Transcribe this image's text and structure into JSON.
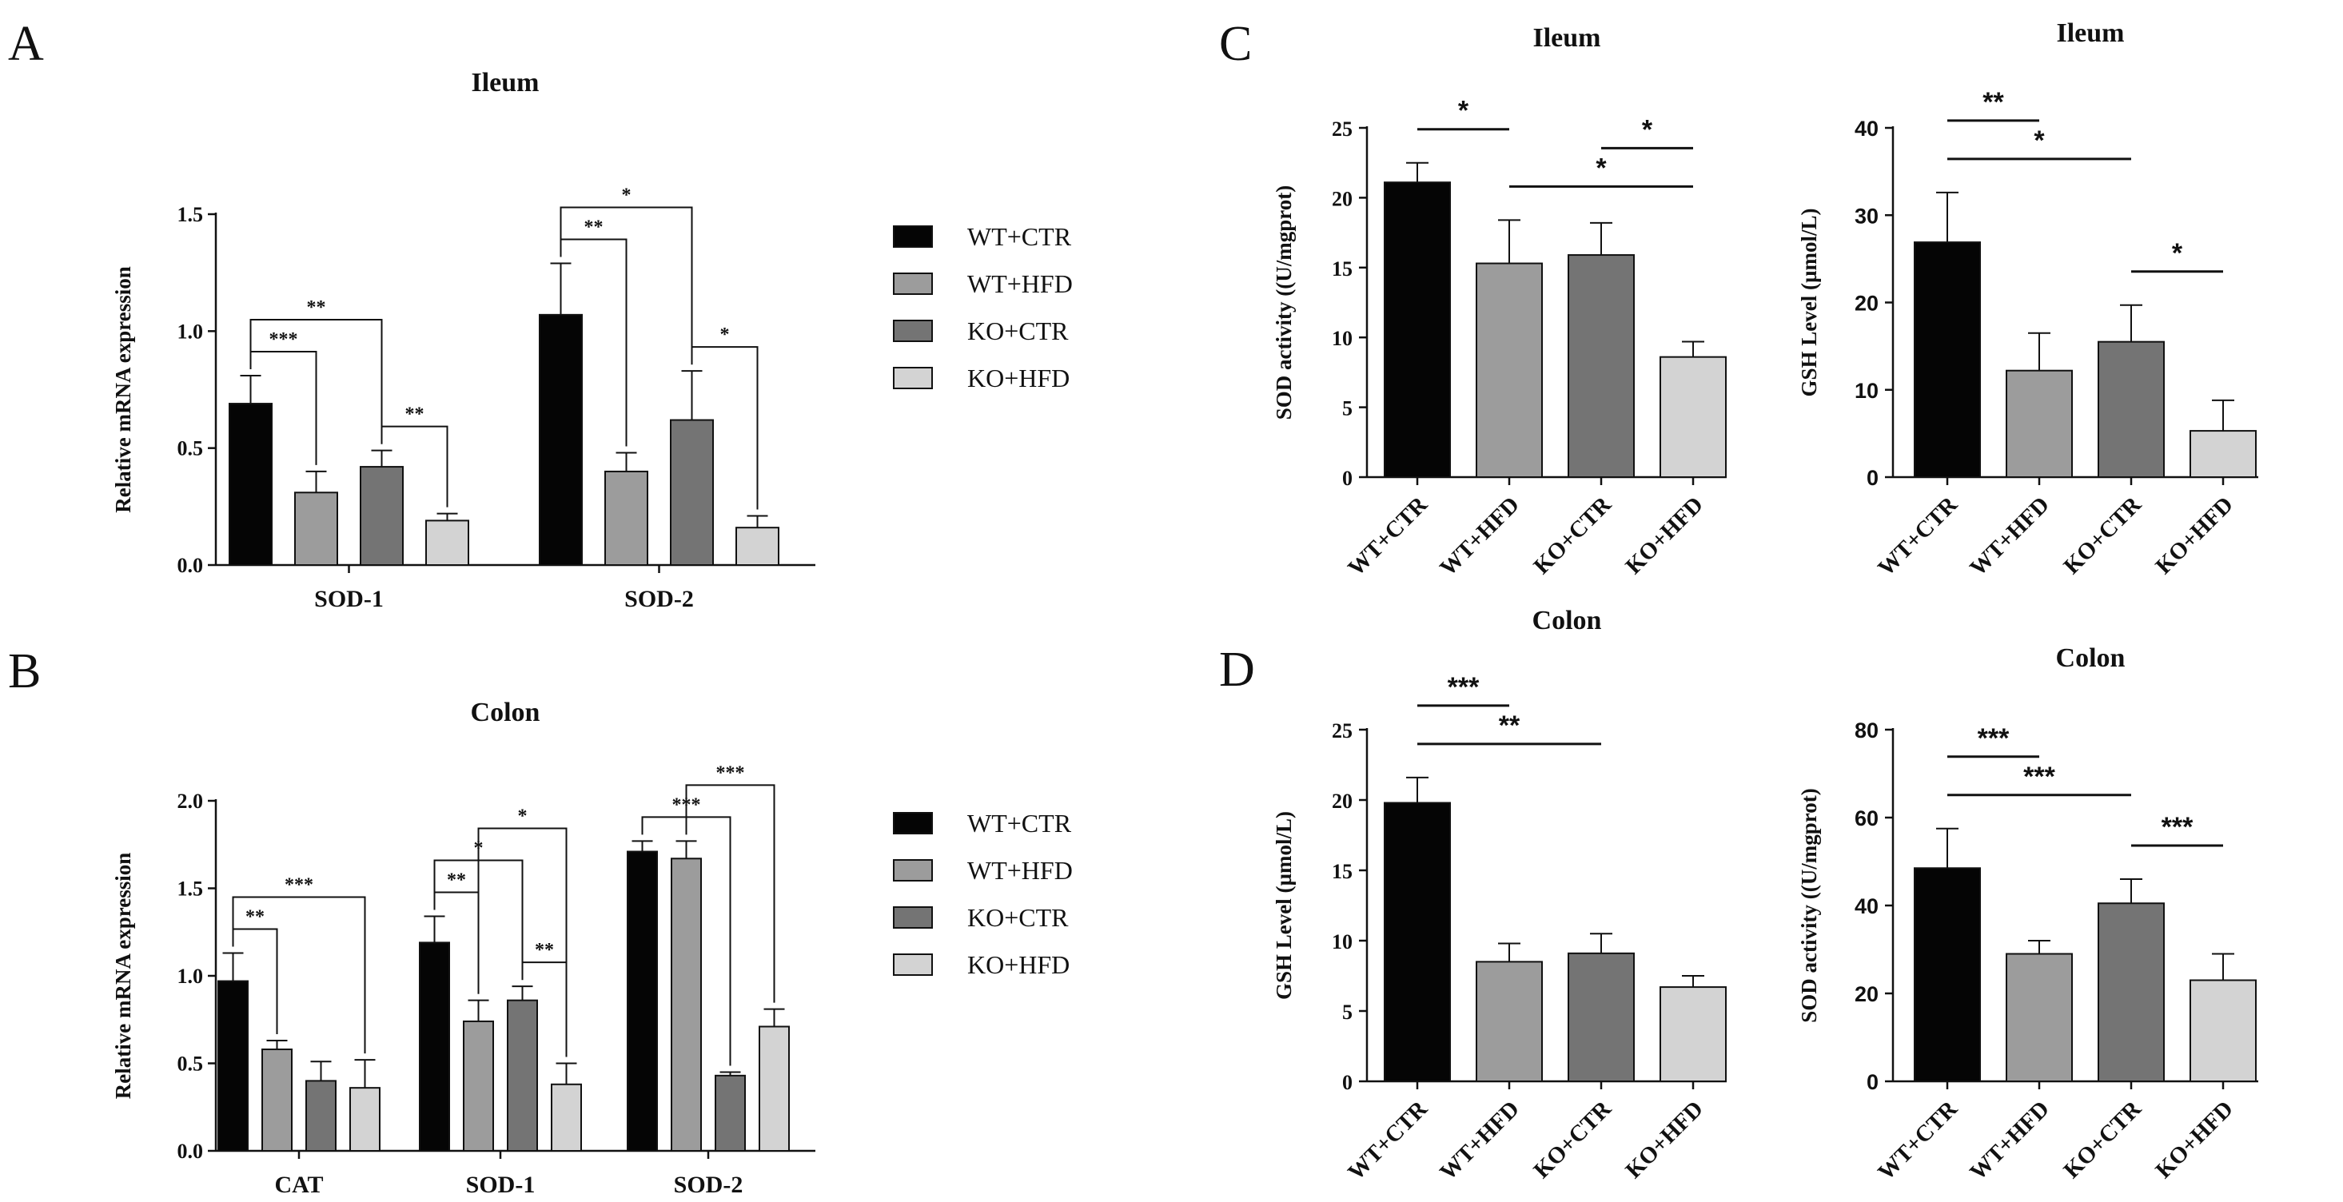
{
  "figure": {
    "panel_letters": [
      "A",
      "B",
      "C",
      "D"
    ],
    "colors": {
      "WT+CTR": "#050505",
      "WT+HFD": "#9c9c9c",
      "KO+CTR": "#747474",
      "KO+HFD": "#d3d3d3",
      "axis": "#111111"
    }
  },
  "chart_data": [
    {
      "id": "A",
      "type": "bar",
      "title": "Ileum",
      "ylabel": "Relative mRNA expression",
      "xlabel": "",
      "ylim": [
        0,
        1.5
      ],
      "yticks": [
        "0.0",
        "0.5",
        "1.0",
        "1.5"
      ],
      "categories": [
        "SOD-1",
        "SOD-2"
      ],
      "series": [
        {
          "name": "WT+CTR",
          "values": [
            0.69,
            1.07
          ],
          "errors": [
            0.12,
            0.22
          ]
        },
        {
          "name": "WT+HFD",
          "values": [
            0.31,
            0.4
          ],
          "errors": [
            0.09,
            0.08
          ]
        },
        {
          "name": "KO+CTR",
          "values": [
            0.42,
            0.62
          ],
          "errors": [
            0.07,
            0.21
          ]
        },
        {
          "name": "KO+HFD",
          "values": [
            0.19,
            0.16
          ],
          "errors": [
            0.03,
            0.05
          ]
        }
      ],
      "significance": [
        {
          "group": 0,
          "from": 0,
          "to": 1,
          "label": "***"
        },
        {
          "group": 0,
          "from": 0,
          "to": 2,
          "label": "**"
        },
        {
          "group": 0,
          "from": 2,
          "to": 3,
          "label": "**"
        },
        {
          "group": 1,
          "from": 0,
          "to": 1,
          "label": "**"
        },
        {
          "group": 1,
          "from": 0,
          "to": 2,
          "label": "*"
        },
        {
          "group": 1,
          "from": 2,
          "to": 3,
          "label": "*"
        }
      ],
      "legend": [
        "WT+CTR",
        "WT+HFD",
        "KO+CTR",
        "KO+HFD"
      ]
    },
    {
      "id": "B",
      "type": "bar",
      "title": "Colon",
      "ylabel": "Relative mRNA expression",
      "xlabel": "",
      "ylim": [
        0,
        2.0
      ],
      "yticks": [
        "0.0",
        "0.5",
        "1.0",
        "1.5",
        "2.0"
      ],
      "categories": [
        "CAT",
        "SOD-1",
        "SOD-2"
      ],
      "series": [
        {
          "name": "WT+CTR",
          "values": [
            0.97,
            1.19,
            1.71
          ],
          "errors": [
            0.16,
            0.15,
            0.06
          ]
        },
        {
          "name": "WT+HFD",
          "values": [
            0.58,
            0.74,
            1.67
          ],
          "errors": [
            0.05,
            0.12,
            0.1
          ]
        },
        {
          "name": "KO+CTR",
          "values": [
            0.4,
            0.86,
            0.43
          ],
          "errors": [
            0.11,
            0.08,
            0.02
          ]
        },
        {
          "name": "KO+HFD",
          "values": [
            0.36,
            0.38,
            0.71
          ],
          "errors": [
            0.16,
            0.12,
            0.1
          ]
        }
      ],
      "significance": [
        {
          "group": 0,
          "from": 0,
          "to": 1,
          "label": "**"
        },
        {
          "group": 0,
          "from": 0,
          "to": 3,
          "label": "***"
        },
        {
          "group": 1,
          "from": 0,
          "to": 1,
          "label": "**"
        },
        {
          "group": 1,
          "from": 0,
          "to": 2,
          "label": "*"
        },
        {
          "group": 1,
          "from": 1,
          "to": 3,
          "label": "*"
        },
        {
          "group": 1,
          "from": 2,
          "to": 3,
          "label": "**"
        },
        {
          "group": 2,
          "from": 0,
          "to": 2,
          "label": "***"
        },
        {
          "group": 2,
          "from": 1,
          "to": 3,
          "label": "***"
        }
      ],
      "legend": [
        "WT+CTR",
        "WT+HFD",
        "KO+CTR",
        "KO+HFD"
      ]
    },
    {
      "id": "C1",
      "type": "bar",
      "title": "Ileum",
      "ylabel": "SOD activity ((U/mgprot)",
      "xlabel": "",
      "ylim": [
        0,
        25
      ],
      "yticks": [
        "0",
        "5",
        "10",
        "15",
        "20",
        "25"
      ],
      "categories": [
        "WT+CTR",
        "WT+HFD",
        "KO+CTR",
        "KO+HFD"
      ],
      "values": [
        21.1,
        15.3,
        15.9,
        8.6
      ],
      "errors": [
        1.4,
        3.1,
        2.3,
        1.1
      ],
      "significance": [
        {
          "from": 0,
          "to": 1,
          "label": "*"
        },
        {
          "from": 1,
          "to": 3,
          "label": "*"
        },
        {
          "from": 2,
          "to": 3,
          "label": "*"
        }
      ]
    },
    {
      "id": "C2",
      "type": "bar",
      "title": "Ileum",
      "ylabel": "GSH Level (µmol/L)",
      "xlabel": "",
      "ylim": [
        0,
        40
      ],
      "yticks": [
        "0",
        "10",
        "20",
        "30",
        "40"
      ],
      "categories": [
        "WT+CTR",
        "WT+HFD",
        "KO+CTR",
        "KO+HFD"
      ],
      "values": [
        26.9,
        12.2,
        15.5,
        5.3
      ],
      "errors": [
        5.7,
        4.3,
        4.2,
        3.5
      ],
      "significance": [
        {
          "from": 0,
          "to": 2,
          "label": "*"
        },
        {
          "from": 0,
          "to": 1,
          "label": "**"
        },
        {
          "from": 2,
          "to": 3,
          "label": "*"
        }
      ]
    },
    {
      "id": "D1",
      "type": "bar",
      "title": "Colon",
      "ylabel": "GSH Level (µmol/L)",
      "xlabel": "",
      "ylim": [
        0,
        25
      ],
      "yticks": [
        "0",
        "5",
        "10",
        "15",
        "20",
        "25"
      ],
      "categories": [
        "WT+CTR",
        "WT+HFD",
        "KO+CTR",
        "KO+HFD"
      ],
      "values": [
        19.8,
        8.5,
        9.1,
        6.7
      ],
      "errors": [
        1.8,
        1.3,
        1.4,
        0.8
      ],
      "significance": [
        {
          "from": 0,
          "to": 2,
          "label": "**"
        },
        {
          "from": 0,
          "to": 1,
          "label": "***"
        }
      ]
    },
    {
      "id": "D2",
      "type": "bar",
      "title": "Colon",
      "ylabel": "SOD activity ((U/mgprot)",
      "xlabel": "",
      "ylim": [
        0,
        80
      ],
      "yticks": [
        "0",
        "20",
        "40",
        "60",
        "80"
      ],
      "categories": [
        "WT+CTR",
        "WT+HFD",
        "KO+CTR",
        "KO+HFD"
      ],
      "values": [
        48.5,
        29.0,
        40.5,
        23.0
      ],
      "errors": [
        9.0,
        3.0,
        5.5,
        6.0
      ],
      "significance": [
        {
          "from": 0,
          "to": 2,
          "label": "***"
        },
        {
          "from": 0,
          "to": 1,
          "label": "***"
        },
        {
          "from": 2,
          "to": 3,
          "label": "***"
        }
      ]
    }
  ]
}
